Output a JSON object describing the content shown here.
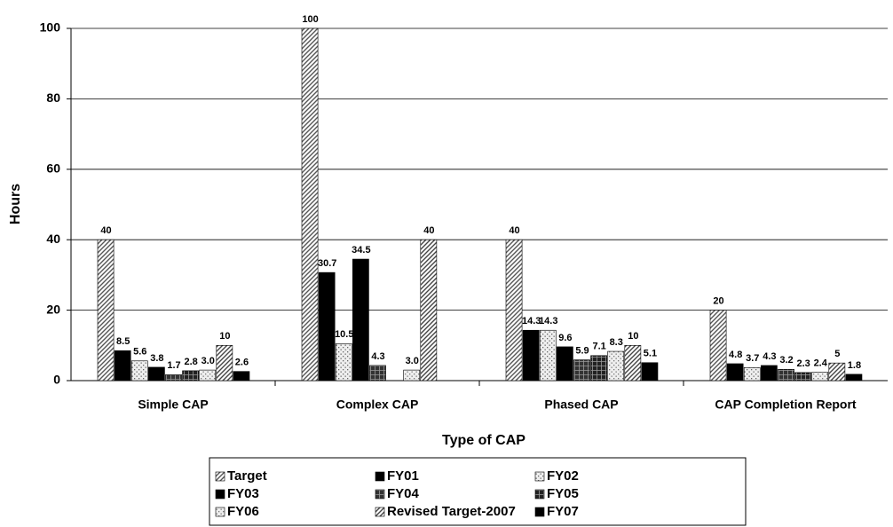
{
  "chart_data": {
    "type": "bar",
    "x_label": "Type of CAP",
    "y_label": "Hours",
    "categories": [
      "Simple CAP",
      "Complex CAP",
      "Phased CAP",
      "CAP Completion Report"
    ],
    "ylim": [
      0,
      100
    ],
    "yticks": [
      0,
      20,
      40,
      60,
      80,
      100
    ],
    "grid": true,
    "series": [
      {
        "name": "Target",
        "color": "#555555",
        "pattern": "hatch",
        "values": [
          40,
          100,
          40,
          20
        ],
        "value_labels": [
          "40",
          "100",
          "40",
          "20"
        ]
      },
      {
        "name": "FY01",
        "color": "#000000",
        "pattern": "solid",
        "values": [
          8.5,
          30.7,
          14.3,
          4.8
        ],
        "value_labels": [
          "8.5",
          "30.7",
          "14.3",
          "4.8"
        ]
      },
      {
        "name": "FY02",
        "color": "#666666",
        "pattern": "dots",
        "values": [
          5.6,
          10.5,
          14.3,
          3.7
        ],
        "value_labels": [
          "5.6",
          "10.5",
          "14.3",
          "3.7"
        ]
      },
      {
        "name": "FY03",
        "color": "#000000",
        "pattern": "solid",
        "values": [
          3.8,
          34.5,
          9.6,
          4.3
        ],
        "value_labels": [
          "3.8",
          "34.5",
          "9.6",
          "4.3"
        ]
      },
      {
        "name": "FY04",
        "color": "#333333",
        "pattern": "cross",
        "values": [
          1.7,
          4.3,
          5.9,
          3.2
        ],
        "value_labels": [
          "1.7",
          "4.3",
          "5.9",
          "3.2"
        ]
      },
      {
        "name": "FY05",
        "color": "#222222",
        "pattern": "cross",
        "values": [
          2.8,
          null,
          7.1,
          2.3
        ],
        "value_labels": [
          "2.8",
          null,
          "7.1",
          "2.3"
        ]
      },
      {
        "name": "FY06",
        "color": "#777777",
        "pattern": "dots",
        "values": [
          3.0,
          3.0,
          8.3,
          2.4
        ],
        "value_labels": [
          "3.0",
          "3.0",
          "8.3",
          "2.4"
        ]
      },
      {
        "name": "Revised Target-2007",
        "color": "#444444",
        "pattern": "hatch",
        "values": [
          10,
          40,
          10,
          5
        ],
        "value_labels": [
          "10",
          "40",
          "10",
          "5"
        ]
      },
      {
        "name": "FY07",
        "color": "#000000",
        "pattern": "solid",
        "values": [
          2.6,
          null,
          5.1,
          1.8
        ],
        "value_labels": [
          "2.6",
          null,
          "5.1",
          "1.8"
        ]
      }
    ],
    "legend": "bottom"
  }
}
